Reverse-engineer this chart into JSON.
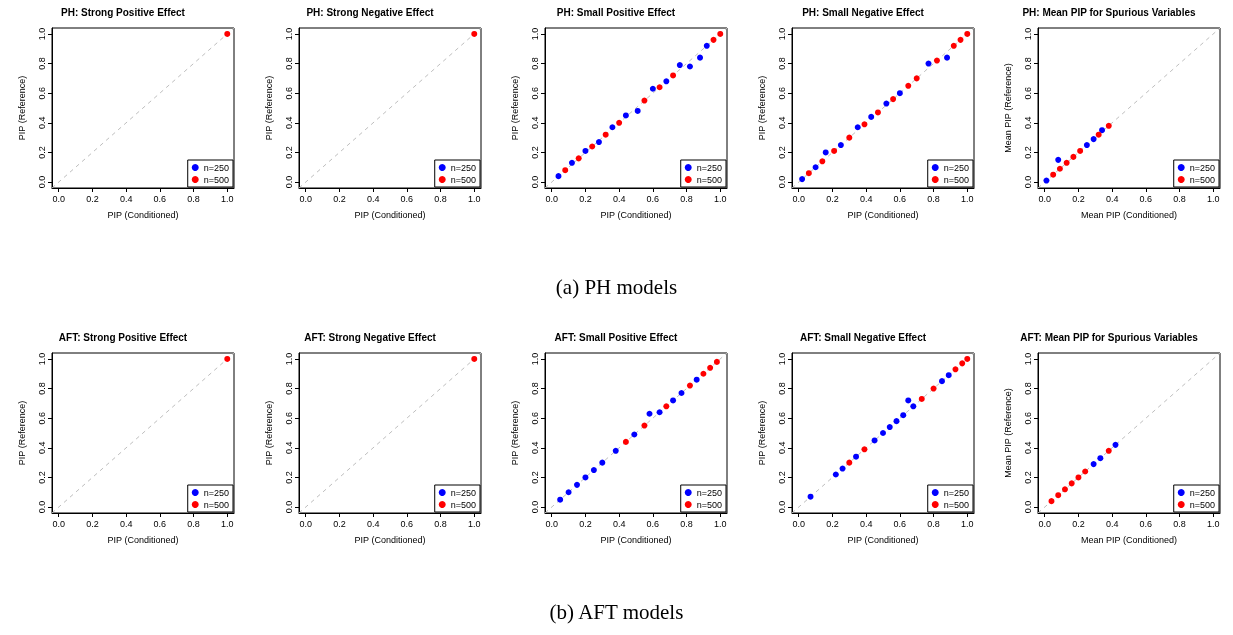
{
  "chart_data": [
    {
      "type": "scatter",
      "title": "PH: Strong Positive Effect",
      "xlabel": "PIP (Conditioned)",
      "ylabel": "PIP (Reference)",
      "xlim": [
        -0.04,
        1.04
      ],
      "ylim": [
        -0.04,
        1.04
      ],
      "xticks": [
        {
          "value": 0,
          "label": "0.0"
        },
        {
          "value": 0.2,
          "label": "0.2"
        },
        {
          "value": 0.4,
          "label": "0.4"
        },
        {
          "value": 0.6,
          "label": "0.6"
        },
        {
          "value": 0.8,
          "label": "0.8"
        },
        {
          "value": 1,
          "label": "1.0"
        }
      ],
      "yticks": [
        {
          "value": 0,
          "label": "0.0"
        },
        {
          "value": 0.2,
          "label": "0.2"
        },
        {
          "value": 0.4,
          "label": "0.4"
        },
        {
          "value": 0.6,
          "label": "0.6"
        },
        {
          "value": 0.8,
          "label": "0.8"
        },
        {
          "value": 1,
          "label": "1.0"
        }
      ],
      "marker": "circle",
      "legend": "bottom right",
      "series": [
        {
          "name": "n=250",
          "color": "#0000ff"
        },
        {
          "name": "n=500",
          "color": "#ff0000",
          "x": [
            1
          ],
          "values": [
            1
          ]
        },
        {
          "type": "line",
          "marker": "none",
          "color": "#bebebe",
          "line_style": "dashed",
          "x": [
            -0.04,
            1.04
          ],
          "values": [
            -0.04,
            1.04
          ]
        }
      ]
    },
    {
      "type": "scatter",
      "title": "PH: Strong Negative Effect",
      "xlabel": "PIP (Conditioned)",
      "ylabel": "PIP (Reference)",
      "xlim": [
        -0.04,
        1.04
      ],
      "ylim": [
        -0.04,
        1.04
      ],
      "xticks": [
        {
          "value": 0,
          "label": "0.0"
        },
        {
          "value": 0.2,
          "label": "0.2"
        },
        {
          "value": 0.4,
          "label": "0.4"
        },
        {
          "value": 0.6,
          "label": "0.6"
        },
        {
          "value": 0.8,
          "label": "0.8"
        },
        {
          "value": 1,
          "label": "1.0"
        }
      ],
      "yticks": [
        {
          "value": 0,
          "label": "0.0"
        },
        {
          "value": 0.2,
          "label": "0.2"
        },
        {
          "value": 0.4,
          "label": "0.4"
        },
        {
          "value": 0.6,
          "label": "0.6"
        },
        {
          "value": 0.8,
          "label": "0.8"
        },
        {
          "value": 1,
          "label": "1.0"
        }
      ],
      "marker": "circle",
      "legend": "bottom right",
      "series": [
        {
          "name": "n=250",
          "color": "#0000ff"
        },
        {
          "name": "n=500",
          "color": "#ff0000",
          "x": [
            1
          ],
          "values": [
            1
          ]
        },
        {
          "type": "line",
          "marker": "none",
          "color": "#bebebe",
          "line_style": "dashed",
          "x": [
            -0.04,
            1.04
          ],
          "values": [
            -0.04,
            1.04
          ]
        }
      ]
    },
    {
      "type": "scatter",
      "title": "PH: Small Positive Effect",
      "xlabel": "PIP (Conditioned)",
      "ylabel": "PIP (Reference)",
      "annotations": [
        "(a) PH models"
      ],
      "xlim": [
        -0.04,
        1.04
      ],
      "ylim": [
        -0.04,
        1.04
      ],
      "xticks": [
        {
          "value": 0,
          "label": "0.0"
        },
        {
          "value": 0.2,
          "label": "0.2"
        },
        {
          "value": 0.4,
          "label": "0.4"
        },
        {
          "value": 0.6,
          "label": "0.6"
        },
        {
          "value": 0.8,
          "label": "0.8"
        },
        {
          "value": 1,
          "label": "1.0"
        }
      ],
      "yticks": [
        {
          "value": 0,
          "label": "0.0"
        },
        {
          "value": 0.2,
          "label": "0.2"
        },
        {
          "value": 0.4,
          "label": "0.4"
        },
        {
          "value": 0.6,
          "label": "0.6"
        },
        {
          "value": 0.8,
          "label": "0.8"
        },
        {
          "value": 1,
          "label": "1.0"
        }
      ],
      "marker": "circle",
      "legend": "bottom right",
      "series": [
        {
          "name": "n=250",
          "color": "#0000ff",
          "x": [
            0.04,
            0.12,
            0.2,
            0.28,
            0.36,
            0.44,
            0.51,
            0.6,
            0.68,
            0.76,
            0.82,
            0.88,
            0.92
          ],
          "values": [
            0.04,
            0.13,
            0.21,
            0.27,
            0.37,
            0.45,
            0.48,
            0.63,
            0.68,
            0.79,
            0.78,
            0.84,
            0.92
          ]
        },
        {
          "name": "n=500",
          "color": "#ff0000",
          "x": [
            0.08,
            0.16,
            0.24,
            0.32,
            0.4,
            0.55,
            0.64,
            0.72,
            0.96,
            1
          ],
          "values": [
            0.08,
            0.16,
            0.24,
            0.32,
            0.4,
            0.55,
            0.64,
            0.72,
            0.96,
            1
          ]
        },
        {
          "type": "line",
          "marker": "none",
          "color": "#bebebe",
          "line_style": "dashed",
          "x": [
            -0.04,
            1.04
          ],
          "values": [
            -0.04,
            1.04
          ]
        }
      ]
    },
    {
      "type": "scatter",
      "title": "PH: Small Negative Effect",
      "xlabel": "PIP (Conditioned)",
      "ylabel": "PIP (Reference)",
      "xlim": [
        -0.04,
        1.04
      ],
      "ylim": [
        -0.04,
        1.04
      ],
      "xticks": [
        {
          "value": 0,
          "label": "0.0"
        },
        {
          "value": 0.2,
          "label": "0.2"
        },
        {
          "value": 0.4,
          "label": "0.4"
        },
        {
          "value": 0.6,
          "label": "0.6"
        },
        {
          "value": 0.8,
          "label": "0.8"
        },
        {
          "value": 1,
          "label": "1.0"
        }
      ],
      "yticks": [
        {
          "value": 0,
          "label": "0.0"
        },
        {
          "value": 0.2,
          "label": "0.2"
        },
        {
          "value": 0.4,
          "label": "0.4"
        },
        {
          "value": 0.6,
          "label": "0.6"
        },
        {
          "value": 0.8,
          "label": "0.8"
        },
        {
          "value": 1,
          "label": "1.0"
        }
      ],
      "marker": "circle",
      "legend": "bottom right",
      "series": [
        {
          "name": "n=250",
          "color": "#0000ff",
          "x": [
            0.02,
            0.1,
            0.16,
            0.25,
            0.35,
            0.43,
            0.52,
            0.6,
            0.77,
            0.88
          ],
          "values": [
            0.02,
            0.1,
            0.2,
            0.25,
            0.37,
            0.44,
            0.53,
            0.6,
            0.8,
            0.84
          ]
        },
        {
          "name": "n=500",
          "color": "#ff0000",
          "x": [
            0.06,
            0.14,
            0.21,
            0.3,
            0.39,
            0.47,
            0.56,
            0.65,
            0.7,
            0.82,
            0.92,
            0.96,
            1
          ],
          "values": [
            0.06,
            0.14,
            0.21,
            0.3,
            0.39,
            0.47,
            0.56,
            0.65,
            0.7,
            0.82,
            0.92,
            0.96,
            1
          ]
        },
        {
          "type": "line",
          "marker": "none",
          "color": "#bebebe",
          "line_style": "dashed",
          "x": [
            -0.04,
            1.04
          ],
          "values": [
            -0.04,
            1.04
          ]
        }
      ]
    },
    {
      "type": "scatter",
      "title": "PH: Mean PIP for Spurious Variables",
      "xlabel": "Mean PIP (Conditioned)",
      "ylabel": "Mean PIP (Reference)",
      "xlim": [
        -0.04,
        1.04
      ],
      "ylim": [
        -0.04,
        1.04
      ],
      "xticks": [
        {
          "value": 0,
          "label": "0.0"
        },
        {
          "value": 0.2,
          "label": "0.2"
        },
        {
          "value": 0.4,
          "label": "0.4"
        },
        {
          "value": 0.6,
          "label": "0.6"
        },
        {
          "value": 0.8,
          "label": "0.8"
        },
        {
          "value": 1,
          "label": "1.0"
        }
      ],
      "yticks": [
        {
          "value": 0,
          "label": "0.0"
        },
        {
          "value": 0.2,
          "label": "0.2"
        },
        {
          "value": 0.4,
          "label": "0.4"
        },
        {
          "value": 0.6,
          "label": "0.6"
        },
        {
          "value": 0.8,
          "label": "0.8"
        },
        {
          "value": 1,
          "label": "1.0"
        }
      ],
      "marker": "circle",
      "legend": "bottom right",
      "series": [
        {
          "name": "n=250",
          "color": "#0000ff",
          "x": [
            0.01,
            0.08,
            0.25,
            0.29,
            0.34
          ],
          "values": [
            0.01,
            0.15,
            0.25,
            0.29,
            0.35
          ]
        },
        {
          "name": "n=500",
          "color": "#ff0000",
          "x": [
            0.05,
            0.09,
            0.13,
            0.17,
            0.21,
            0.32,
            0.38
          ],
          "values": [
            0.05,
            0.09,
            0.13,
            0.17,
            0.21,
            0.32,
            0.38
          ]
        },
        {
          "type": "line",
          "marker": "none",
          "color": "#bebebe",
          "line_style": "dashed",
          "x": [
            -0.04,
            1.04
          ],
          "values": [
            -0.04,
            1.04
          ]
        }
      ]
    },
    {
      "type": "scatter",
      "title": "AFT: Strong Positive Effect",
      "xlabel": "PIP (Conditioned)",
      "ylabel": "PIP (Reference)",
      "xlim": [
        -0.04,
        1.04
      ],
      "ylim": [
        -0.04,
        1.04
      ],
      "xticks": [
        {
          "value": 0,
          "label": "0.0"
        },
        {
          "value": 0.2,
          "label": "0.2"
        },
        {
          "value": 0.4,
          "label": "0.4"
        },
        {
          "value": 0.6,
          "label": "0.6"
        },
        {
          "value": 0.8,
          "label": "0.8"
        },
        {
          "value": 1,
          "label": "1.0"
        }
      ],
      "yticks": [
        {
          "value": 0,
          "label": "0.0"
        },
        {
          "value": 0.2,
          "label": "0.2"
        },
        {
          "value": 0.4,
          "label": "0.4"
        },
        {
          "value": 0.6,
          "label": "0.6"
        },
        {
          "value": 0.8,
          "label": "0.8"
        },
        {
          "value": 1,
          "label": "1.0"
        }
      ],
      "marker": "circle",
      "legend": "bottom right",
      "series": [
        {
          "name": "n=250",
          "color": "#0000ff"
        },
        {
          "name": "n=500",
          "color": "#ff0000",
          "x": [
            1
          ],
          "values": [
            1
          ]
        },
        {
          "type": "line",
          "marker": "none",
          "color": "#bebebe",
          "line_style": "dashed",
          "x": [
            -0.04,
            1.04
          ],
          "values": [
            -0.04,
            1.04
          ]
        }
      ]
    },
    {
      "type": "scatter",
      "title": "AFT: Strong Negative Effect",
      "xlabel": "PIP (Conditioned)",
      "ylabel": "PIP (Reference)",
      "xlim": [
        -0.04,
        1.04
      ],
      "ylim": [
        -0.04,
        1.04
      ],
      "xticks": [
        {
          "value": 0,
          "label": "0.0"
        },
        {
          "value": 0.2,
          "label": "0.2"
        },
        {
          "value": 0.4,
          "label": "0.4"
        },
        {
          "value": 0.6,
          "label": "0.6"
        },
        {
          "value": 0.8,
          "label": "0.8"
        },
        {
          "value": 1,
          "label": "1.0"
        }
      ],
      "yticks": [
        {
          "value": 0,
          "label": "0.0"
        },
        {
          "value": 0.2,
          "label": "0.2"
        },
        {
          "value": 0.4,
          "label": "0.4"
        },
        {
          "value": 0.6,
          "label": "0.6"
        },
        {
          "value": 0.8,
          "label": "0.8"
        },
        {
          "value": 1,
          "label": "1.0"
        }
      ],
      "marker": "circle",
      "legend": "bottom right",
      "series": [
        {
          "name": "n=250",
          "color": "#0000ff"
        },
        {
          "name": "n=500",
          "color": "#ff0000",
          "x": [
            1
          ],
          "values": [
            1
          ]
        },
        {
          "type": "line",
          "marker": "none",
          "color": "#bebebe",
          "line_style": "dashed",
          "x": [
            -0.04,
            1.04
          ],
          "values": [
            -0.04,
            1.04
          ]
        }
      ]
    },
    {
      "type": "scatter",
      "title": "AFT: Small Positive Effect",
      "xlabel": "PIP (Conditioned)",
      "ylabel": "PIP (Reference)",
      "annotations": [
        "(b) AFT models"
      ],
      "xlim": [
        -0.04,
        1.04
      ],
      "ylim": [
        -0.04,
        1.04
      ],
      "xticks": [
        {
          "value": 0,
          "label": "0.0"
        },
        {
          "value": 0.2,
          "label": "0.2"
        },
        {
          "value": 0.4,
          "label": "0.4"
        },
        {
          "value": 0.6,
          "label": "0.6"
        },
        {
          "value": 0.8,
          "label": "0.8"
        },
        {
          "value": 1,
          "label": "1.0"
        }
      ],
      "yticks": [
        {
          "value": 0,
          "label": "0.0"
        },
        {
          "value": 0.2,
          "label": "0.2"
        },
        {
          "value": 0.4,
          "label": "0.4"
        },
        {
          "value": 0.6,
          "label": "0.6"
        },
        {
          "value": 0.8,
          "label": "0.8"
        },
        {
          "value": 1,
          "label": "1.0"
        }
      ],
      "marker": "circle",
      "legend": "bottom right",
      "series": [
        {
          "name": "n=250",
          "color": "#0000ff",
          "x": [
            0.05,
            0.1,
            0.15,
            0.2,
            0.25,
            0.3,
            0.38,
            0.49,
            0.58,
            0.64,
            0.72,
            0.77,
            0.86
          ],
          "values": [
            0.05,
            0.1,
            0.15,
            0.2,
            0.25,
            0.3,
            0.38,
            0.49,
            0.63,
            0.64,
            0.72,
            0.77,
            0.86
          ]
        },
        {
          "name": "n=500",
          "color": "#ff0000",
          "x": [
            0.44,
            0.55,
            0.68,
            0.82,
            0.9,
            0.94,
            0.98
          ],
          "values": [
            0.44,
            0.55,
            0.68,
            0.82,
            0.9,
            0.94,
            0.98
          ]
        },
        {
          "type": "line",
          "marker": "none",
          "color": "#bebebe",
          "line_style": "dashed",
          "x": [
            -0.04,
            1.04
          ],
          "values": [
            -0.04,
            1.04
          ]
        }
      ]
    },
    {
      "type": "scatter",
      "title": "AFT: Small Negative Effect",
      "xlabel": "PIP (Conditioned)",
      "ylabel": "PIP (Reference)",
      "xlim": [
        -0.04,
        1.04
      ],
      "ylim": [
        -0.04,
        1.04
      ],
      "xticks": [
        {
          "value": 0,
          "label": "0.0"
        },
        {
          "value": 0.2,
          "label": "0.2"
        },
        {
          "value": 0.4,
          "label": "0.4"
        },
        {
          "value": 0.6,
          "label": "0.6"
        },
        {
          "value": 0.8,
          "label": "0.8"
        },
        {
          "value": 1,
          "label": "1.0"
        }
      ],
      "yticks": [
        {
          "value": 0,
          "label": "0.0"
        },
        {
          "value": 0.2,
          "label": "0.2"
        },
        {
          "value": 0.4,
          "label": "0.4"
        },
        {
          "value": 0.6,
          "label": "0.6"
        },
        {
          "value": 0.8,
          "label": "0.8"
        },
        {
          "value": 1,
          "label": "1.0"
        }
      ],
      "marker": "circle",
      "legend": "bottom right",
      "series": [
        {
          "name": "n=250",
          "color": "#0000ff",
          "x": [
            0.07,
            0.22,
            0.26,
            0.34,
            0.45,
            0.5,
            0.54,
            0.58,
            0.62,
            0.65,
            0.68,
            0.85,
            0.89
          ],
          "values": [
            0.07,
            0.22,
            0.26,
            0.34,
            0.45,
            0.5,
            0.54,
            0.58,
            0.62,
            0.72,
            0.68,
            0.85,
            0.89
          ]
        },
        {
          "name": "n=500",
          "color": "#ff0000",
          "x": [
            0.3,
            0.39,
            0.73,
            0.8,
            0.93,
            0.97,
            1
          ],
          "values": [
            0.3,
            0.39,
            0.73,
            0.8,
            0.93,
            0.97,
            1
          ]
        },
        {
          "type": "line",
          "marker": "none",
          "color": "#bebebe",
          "line_style": "dashed",
          "x": [
            -0.04,
            1.04
          ],
          "values": [
            -0.04,
            1.04
          ]
        }
      ]
    },
    {
      "type": "scatter",
      "title": "AFT: Mean PIP for Spurious Variables",
      "xlabel": "Mean PIP (Conditioned)",
      "ylabel": "Mean PIP (Reference)",
      "xlim": [
        -0.04,
        1.04
      ],
      "ylim": [
        -0.04,
        1.04
      ],
      "xticks": [
        {
          "value": 0,
          "label": "0.0"
        },
        {
          "value": 0.2,
          "label": "0.2"
        },
        {
          "value": 0.4,
          "label": "0.4"
        },
        {
          "value": 0.6,
          "label": "0.6"
        },
        {
          "value": 0.8,
          "label": "0.8"
        },
        {
          "value": 1,
          "label": "1.0"
        }
      ],
      "yticks": [
        {
          "value": 0,
          "label": "0.0"
        },
        {
          "value": 0.2,
          "label": "0.2"
        },
        {
          "value": 0.4,
          "label": "0.4"
        },
        {
          "value": 0.6,
          "label": "0.6"
        },
        {
          "value": 0.8,
          "label": "0.8"
        },
        {
          "value": 1,
          "label": "1.0"
        }
      ],
      "marker": "circle",
      "legend": "bottom right",
      "series": [
        {
          "name": "n=250",
          "color": "#0000ff",
          "x": [
            0.29,
            0.33,
            0.42
          ],
          "values": [
            0.29,
            0.33,
            0.42
          ]
        },
        {
          "name": "n=500",
          "color": "#ff0000",
          "x": [
            0.04,
            0.08,
            0.12,
            0.16,
            0.2,
            0.24,
            0.38
          ],
          "values": [
            0.04,
            0.08,
            0.12,
            0.16,
            0.2,
            0.24,
            0.38
          ]
        },
        {
          "type": "line",
          "marker": "none",
          "color": "#bebebe",
          "line_style": "dashed",
          "x": [
            -0.04,
            1.04
          ],
          "values": [
            -0.04,
            1.04
          ]
        }
      ]
    }
  ]
}
